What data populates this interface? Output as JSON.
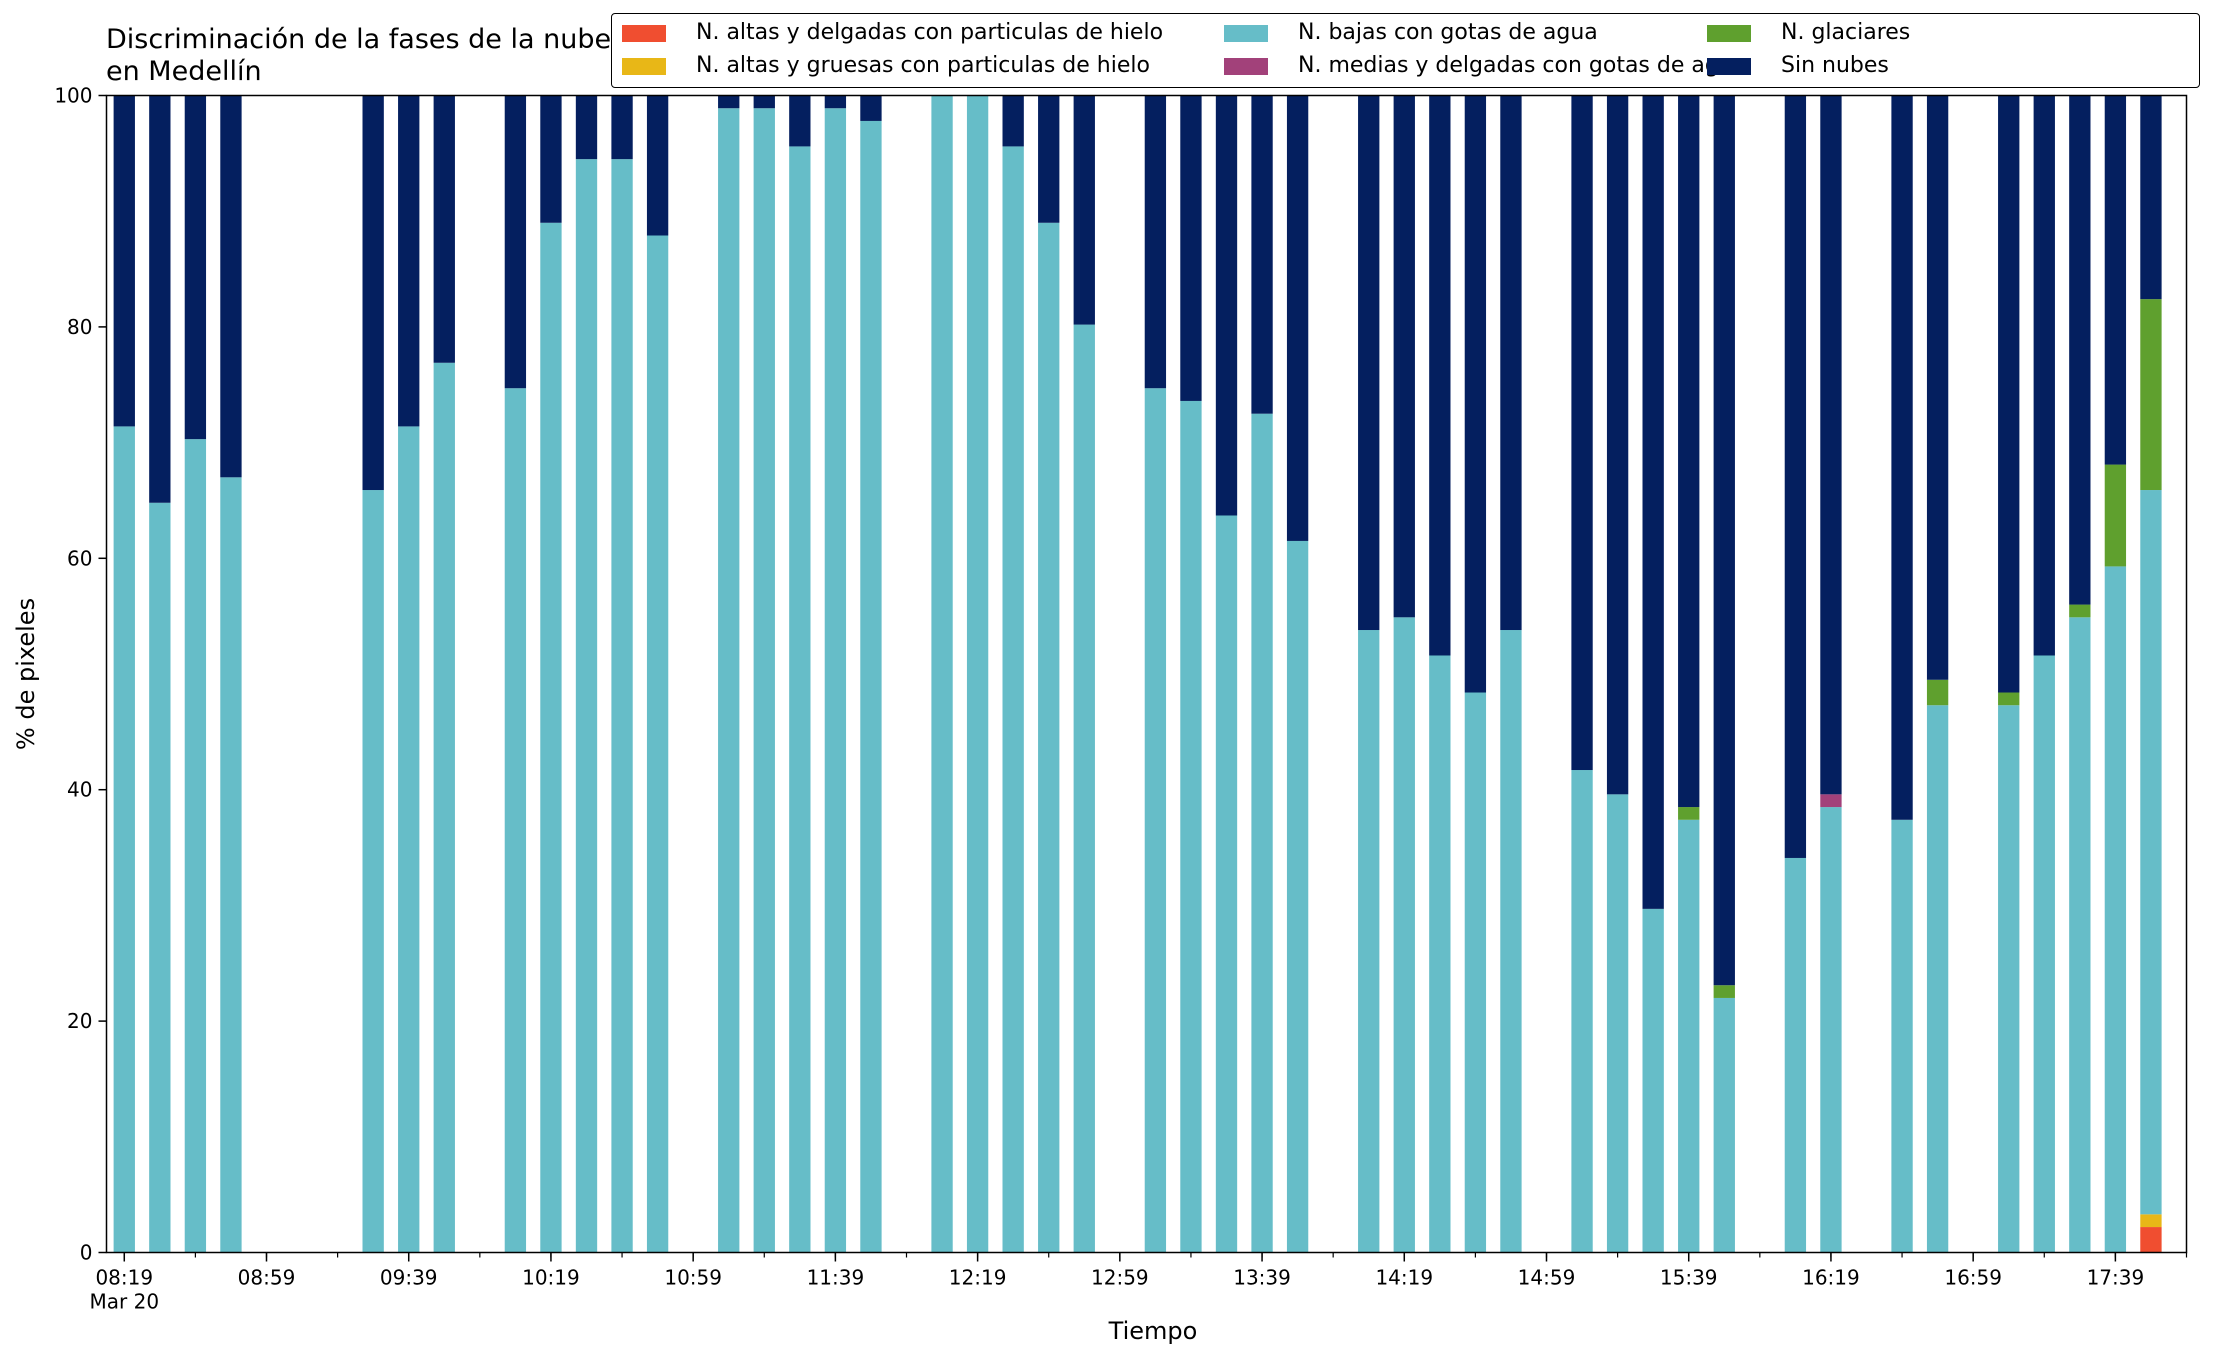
{
  "chart_data": {
    "type": "bar",
    "stacked": true,
    "title": "Discriminación de la fases de la nube en Medellín",
    "xlabel": "Tiempo",
    "ylabel": "% de pixeles",
    "ylim": [
      0,
      100
    ],
    "yticks": [
      0,
      20,
      40,
      60,
      80,
      100
    ],
    "xlim": [
      "08:14",
      "17:59"
    ],
    "x_tick_labels": [
      "08:19",
      "08:59",
      "09:39",
      "10:19",
      "10:59",
      "11:39",
      "12:19",
      "12:59",
      "13:39",
      "14:19",
      "14:59",
      "15:39",
      "16:19",
      "16:59",
      "17:39"
    ],
    "x_tick_sublabel": "Mar 20",
    "legend_position": "top",
    "grid": false,
    "x": [
      "08:19",
      "08:29",
      "08:39",
      "08:49",
      "09:29",
      "09:39",
      "09:49",
      "10:09",
      "10:19",
      "10:29",
      "10:39",
      "10:49",
      "11:09",
      "11:19",
      "11:29",
      "11:39",
      "11:49",
      "12:09",
      "12:19",
      "12:29",
      "12:39",
      "12:49",
      "13:09",
      "13:19",
      "13:29",
      "13:39",
      "13:49",
      "14:09",
      "14:19",
      "14:29",
      "14:39",
      "14:49",
      "15:09",
      "15:19",
      "15:29",
      "15:39",
      "15:49",
      "16:09",
      "16:19",
      "16:39",
      "16:49",
      "17:09",
      "17:19",
      "17:29",
      "17:39",
      "17:49"
    ],
    "series": [
      {
        "name": "N. altas y delgadas con particulas de hielo",
        "color": "#f04e30",
        "values": [
          0,
          0,
          0,
          0,
          0,
          0,
          0,
          0,
          0,
          0,
          0,
          0,
          0,
          0,
          0,
          0,
          0,
          0,
          0,
          0,
          0,
          0,
          0,
          0,
          0,
          0,
          0,
          0,
          0,
          0,
          0,
          0,
          0,
          0,
          0,
          0,
          0,
          0,
          0,
          0,
          0,
          0,
          0,
          0,
          0,
          2.2
        ]
      },
      {
        "name": "N. altas y gruesas con particulas de hielo",
        "color": "#e8b717",
        "values": [
          0,
          0,
          0,
          0,
          0,
          0,
          0,
          0,
          0,
          0,
          0,
          0,
          0,
          0,
          0,
          0,
          0,
          0,
          0,
          0,
          0,
          0,
          0,
          0,
          0,
          0,
          0,
          0,
          0,
          0,
          0,
          0,
          0,
          0,
          0,
          0,
          0,
          0,
          0,
          0,
          0,
          0,
          0,
          0,
          0,
          1.1
        ]
      },
      {
        "name": "N. bajas con gotas de agua",
        "color": "#66bdc8",
        "values": [
          71.4,
          64.8,
          70.3,
          67.0,
          65.9,
          71.4,
          76.9,
          74.7,
          89.0,
          94.5,
          94.5,
          87.9,
          98.9,
          98.9,
          95.6,
          98.9,
          97.8,
          100,
          100,
          95.6,
          89.0,
          80.2,
          74.7,
          73.6,
          63.7,
          72.5,
          61.5,
          53.8,
          54.9,
          51.6,
          48.4,
          53.8,
          41.7,
          39.6,
          29.7,
          37.4,
          22.0,
          34.1,
          38.5,
          37.4,
          47.3,
          47.3,
          51.6,
          54.9,
          59.3,
          62.6
        ]
      },
      {
        "name": "N. medias y delgadas con gotas de agua",
        "color": "#a2417a",
        "values": [
          0,
          0,
          0,
          0,
          0,
          0,
          0,
          0,
          0,
          0,
          0,
          0,
          0,
          0,
          0,
          0,
          0,
          0,
          0,
          0,
          0,
          0,
          0,
          0,
          0,
          0,
          0,
          0,
          0,
          0,
          0,
          0,
          0,
          0,
          0,
          0,
          0,
          0,
          1.1,
          0,
          0,
          0,
          0,
          0,
          0,
          0
        ]
      },
      {
        "name": "N. glaciares",
        "color": "#5fa02e",
        "values": [
          0,
          0,
          0,
          0,
          0,
          0,
          0,
          0,
          0,
          0,
          0,
          0,
          0,
          0,
          0,
          0,
          0,
          0,
          0,
          0,
          0,
          0,
          0,
          0,
          0,
          0,
          0,
          0,
          0,
          0,
          0,
          0,
          0,
          0,
          0,
          1.1,
          1.1,
          0,
          0,
          0,
          2.2,
          1.1,
          0,
          1.1,
          8.8,
          16.5
        ]
      },
      {
        "name": "Sin nubes",
        "color": "#041f5f",
        "values": [
          28.6,
          35.2,
          29.7,
          33.0,
          34.1,
          28.6,
          23.1,
          25.3,
          11.0,
          5.5,
          5.5,
          12.1,
          1.1,
          1.1,
          4.4,
          1.1,
          2.2,
          0,
          0,
          4.4,
          11.0,
          19.8,
          25.3,
          26.4,
          36.3,
          27.5,
          38.5,
          46.2,
          45.1,
          48.4,
          51.6,
          46.2,
          58.3,
          60.4,
          70.3,
          61.5,
          76.9,
          65.9,
          60.4,
          62.6,
          50.5,
          51.6,
          48.4,
          44.0,
          31.9,
          17.6
        ]
      }
    ]
  }
}
